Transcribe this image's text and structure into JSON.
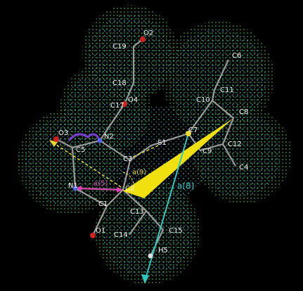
{
  "atoms": [
    {
      "label": "O2"
    },
    {
      "label": "C19"
    },
    {
      "label": "C18"
    },
    {
      "label": "O4"
    },
    {
      "label": "C17"
    },
    {
      "label": "C6"
    },
    {
      "label": "C11"
    },
    {
      "label": "C10"
    },
    {
      "label": "C8"
    },
    {
      "label": "O3"
    },
    {
      "label": "N2"
    },
    {
      "label": "C5"
    },
    {
      "label": "S1"
    },
    {
      "label": "C7"
    },
    {
      "label": "C9"
    },
    {
      "label": "C12"
    },
    {
      "label": "C4"
    },
    {
      "label": "C3"
    },
    {
      "label": "N1"
    },
    {
      "label": "C2"
    },
    {
      "label": "C1"
    },
    {
      "label": "C13"
    },
    {
      "label": "C15"
    },
    {
      "label": "C14"
    },
    {
      "label": "O1"
    },
    {
      "label": "H5"
    }
  ],
  "angle_labels": [
    {
      "label": "a(9)"
    },
    {
      "label": "a(5)"
    },
    {
      "label": "a(8)"
    }
  ]
}
